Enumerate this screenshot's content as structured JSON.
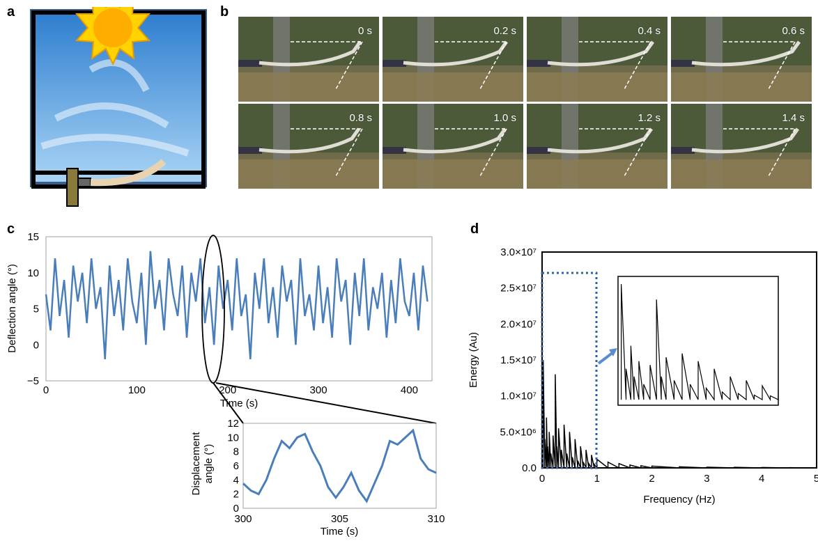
{
  "panels": {
    "a": "a",
    "b": "b",
    "c": "c",
    "d": "d"
  },
  "panel_b": {
    "frame_times": [
      "0 s",
      "0.2 s",
      "0.4 s",
      "0.6 s",
      "0.8 s",
      "1.0 s",
      "1.2 s",
      "1.4 s"
    ]
  },
  "colors": {
    "series_blue": "#4a7ebb",
    "series_black": "#000000",
    "sky_top": "#2f7fd0",
    "sky_bottom": "#a9d4f5",
    "sun": "#ffd200"
  },
  "chart_data": [
    {
      "id": "c-main",
      "type": "line",
      "xlabel": "Time (s)",
      "ylabel": "Deflection angle (°)",
      "xlim": [
        0,
        425
      ],
      "ylim": [
        -5,
        15
      ],
      "xticks": [
        "0",
        "100",
        "200",
        "300",
        "400"
      ],
      "yticks": [
        "−5",
        "0",
        "5",
        "10",
        "15"
      ],
      "series": [
        {
          "x": [
            0,
            5,
            10,
            15,
            20,
            25,
            30,
            35,
            40,
            45,
            50,
            55,
            60,
            65,
            70,
            75,
            80,
            85,
            90,
            95,
            100,
            105,
            110,
            115,
            120,
            125,
            130,
            135,
            140,
            145,
            150,
            155,
            160,
            165,
            170,
            175,
            180,
            185,
            190,
            195,
            200,
            205,
            210,
            215,
            220,
            225,
            230,
            235,
            240,
            245,
            250,
            255,
            260,
            265,
            270,
            275,
            280,
            285,
            290,
            295,
            300,
            305,
            310,
            315,
            320,
            325,
            330,
            335,
            340,
            345,
            350,
            355,
            360,
            365,
            370,
            375,
            380,
            385,
            390,
            395,
            400,
            405,
            410,
            415,
            420
          ],
          "y": [
            7,
            2,
            12,
            4,
            9,
            1,
            11,
            6,
            10,
            3,
            12,
            5,
            8,
            -2,
            11,
            4,
            9,
            2,
            12,
            6,
            3,
            10,
            0,
            13,
            5,
            9,
            2,
            12,
            7,
            4,
            11,
            1,
            10,
            6,
            12,
            3,
            8,
            0,
            11,
            5,
            9,
            2,
            12,
            4,
            7,
            -2,
            10,
            5,
            12,
            3,
            8,
            1,
            11,
            6,
            9,
            0,
            12,
            4,
            7,
            2,
            11,
            3,
            8,
            1,
            12,
            6,
            9,
            0,
            10,
            4,
            12,
            2,
            8,
            5,
            10,
            1,
            9,
            3,
            12,
            6,
            4,
            10,
            2,
            11,
            6
          ]
        }
      ]
    },
    {
      "id": "c-inset",
      "type": "line",
      "xlabel": "Time (s)",
      "ylabel": "Displacement angle (°)",
      "ylabel_lines": [
        "Displacement",
        "angle (°)"
      ],
      "xlim": [
        300,
        310
      ],
      "ylim": [
        0,
        12
      ],
      "xticks": [
        "300",
        "305",
        "310"
      ],
      "yticks": [
        "0",
        "2",
        "4",
        "6",
        "8",
        "10",
        "12"
      ],
      "series": [
        {
          "x": [
            300,
            300.4,
            300.8,
            301.2,
            301.6,
            302,
            302.4,
            302.8,
            303.2,
            303.6,
            304,
            304.4,
            304.8,
            305.2,
            305.6,
            306,
            306.4,
            306.8,
            307.2,
            307.6,
            308,
            308.4,
            308.8,
            309.2,
            309.6,
            310
          ],
          "y": [
            3.5,
            2.5,
            2,
            4,
            7,
            9.5,
            8.5,
            10,
            10.5,
            8,
            6,
            3,
            1.5,
            3,
            5,
            2.5,
            1,
            3.5,
            6,
            9.5,
            9,
            10,
            11,
            7,
            5.5,
            5
          ]
        }
      ]
    },
    {
      "id": "d-main",
      "type": "line",
      "xlabel": "Frequency (Hz)",
      "ylabel": "Energy (Au)",
      "xlim": [
        0,
        5
      ],
      "ylim": [
        0,
        30000000
      ],
      "xticks": [
        "0",
        "1",
        "2",
        "3",
        "4",
        "5"
      ],
      "yticks": [
        "0.0",
        "5.0×10⁶",
        "1.0×10⁷",
        "1.5×10⁷",
        "2.0×10⁷",
        "2.5×10⁷",
        "3.0×10⁷"
      ],
      "series": [
        {
          "x": [
            0.02,
            0.05,
            0.08,
            0.1,
            0.13,
            0.16,
            0.2,
            0.24,
            0.27,
            0.3,
            0.35,
            0.4,
            0.45,
            0.5,
            0.55,
            0.6,
            0.65,
            0.7,
            0.75,
            0.8,
            0.85,
            0.9,
            0.95,
            1.0,
            1.2,
            1.4,
            1.6,
            1.8,
            2.0,
            2.5,
            3.0,
            3.5,
            4.0,
            4.5,
            5.0
          ],
          "y": [
            15000000,
            4000000,
            7000000,
            3000000,
            5000000,
            2000000,
            4500000,
            13000000,
            3000000,
            5500000,
            2500000,
            6000000,
            2000000,
            5000000,
            1500000,
            4000000,
            1000000,
            3000000,
            800000,
            2500000,
            600000,
            1800000,
            500000,
            1200000,
            800000,
            600000,
            400000,
            300000,
            250000,
            150000,
            100000,
            80000,
            60000,
            40000,
            30000
          ]
        }
      ]
    }
  ]
}
